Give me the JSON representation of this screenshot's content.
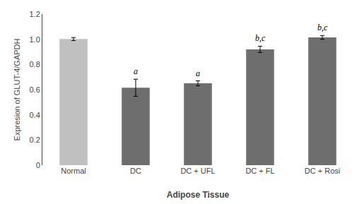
{
  "chart_data": {
    "type": "bar",
    "categories": [
      "Normal",
      "DC",
      "DC + UFL",
      "DC + FL",
      "DC + Rosi"
    ],
    "values": [
      1.002,
      0.615,
      0.65,
      0.92,
      1.015
    ],
    "errors": [
      0.012,
      0.068,
      0.02,
      0.025,
      0.015
    ],
    "colors": [
      "#c0c0c0",
      "#6e6e6e",
      "#6e6e6e",
      "#6e6e6e",
      "#6e6e6e"
    ],
    "annotations": [
      {
        "category": "DC",
        "text": "a"
      },
      {
        "category": "DC + UFL",
        "text": "a"
      },
      {
        "category": "DC + FL",
        "text": "b,c"
      },
      {
        "category": "DC + Rosi",
        "text": "b,c"
      }
    ],
    "xlabel": "Adipose Tissue",
    "ylabel": "Expresion of GLUT-4/GAPDH",
    "ylim": [
      0,
      1.2
    ],
    "yticks": [
      0,
      0.2,
      0.4,
      0.6,
      0.8,
      {
        "value": 1.0,
        "label": "1.0"
      },
      1.2
    ],
    "grid": false
  }
}
